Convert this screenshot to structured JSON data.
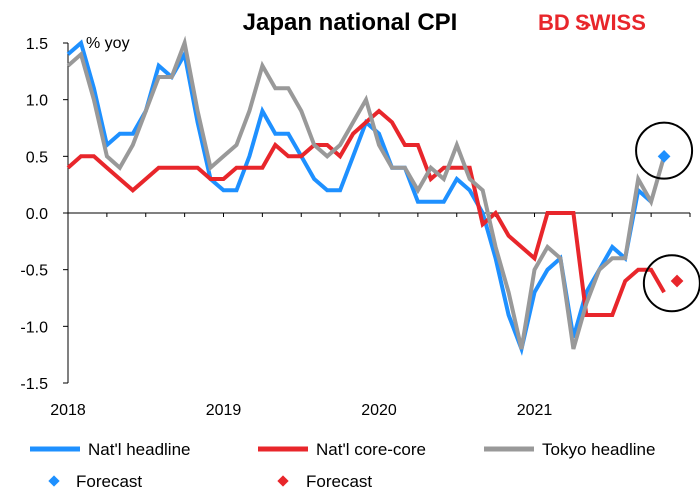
{
  "chart_data": {
    "type": "line",
    "title": "Japan national CPI",
    "unit_label": "% yoy",
    "brand": {
      "part1": "BD",
      "part2": "SWISS",
      "color": "#e8262b"
    },
    "ylim": [
      -1.5,
      1.5
    ],
    "yticks": [
      "1.5",
      "1.0",
      "0.5",
      "0.0",
      "-0.5",
      "-1.0",
      "-1.5"
    ],
    "ytick_values": [
      1.5,
      1.0,
      0.5,
      0.0,
      -0.5,
      -1.0,
      -1.5
    ],
    "xticks": [
      "2018",
      "2019",
      "2020",
      "2021"
    ],
    "xtick_months": [
      0,
      12,
      24,
      36
    ],
    "x_range_months": [
      0,
      48
    ],
    "grid": false,
    "legend_placement": "bottom",
    "series": [
      {
        "name": "Nat'l headline",
        "color": "#1e90ff",
        "values": [
          1.4,
          1.5,
          1.1,
          0.6,
          0.7,
          0.7,
          0.9,
          1.3,
          1.2,
          1.4,
          0.8,
          0.3,
          0.2,
          0.2,
          0.5,
          0.9,
          0.7,
          0.7,
          0.5,
          0.3,
          0.2,
          0.2,
          0.5,
          0.8,
          0.7,
          0.4,
          0.4,
          0.1,
          0.1,
          0.1,
          0.3,
          0.2,
          0.0,
          -0.4,
          -0.9,
          -1.2,
          -0.7,
          -0.5,
          -0.4,
          -1.1,
          -0.7,
          -0.5,
          -0.3,
          -0.4,
          0.2,
          0.1
        ]
      },
      {
        "name": "Nat'l core-core",
        "color": "#e8262b",
        "values": [
          0.4,
          0.5,
          0.5,
          0.4,
          0.3,
          0.2,
          0.3,
          0.4,
          0.4,
          0.4,
          0.4,
          0.3,
          0.3,
          0.4,
          0.4,
          0.4,
          0.6,
          0.5,
          0.5,
          0.6,
          0.6,
          0.5,
          0.7,
          0.8,
          0.9,
          0.8,
          0.6,
          0.6,
          0.3,
          0.4,
          0.4,
          0.4,
          -0.1,
          0.0,
          -0.2,
          -0.3,
          -0.4,
          0.0,
          0.0,
          0.0,
          -0.9,
          -0.9,
          -0.9,
          -0.6,
          -0.5,
          -0.5,
          -0.7
        ]
      },
      {
        "name": "Tokyo headline",
        "color": "#999999",
        "values": [
          1.3,
          1.4,
          1.0,
          0.5,
          0.4,
          0.6,
          0.9,
          1.2,
          1.2,
          1.5,
          0.9,
          0.4,
          0.5,
          0.6,
          0.9,
          1.3,
          1.1,
          1.1,
          0.9,
          0.6,
          0.5,
          0.6,
          0.8,
          1.0,
          0.6,
          0.4,
          0.4,
          0.2,
          0.4,
          0.3,
          0.6,
          0.3,
          0.2,
          -0.3,
          -0.7,
          -1.2,
          -0.5,
          -0.3,
          -0.4,
          -1.2,
          -0.8,
          -0.5,
          -0.4,
          -0.4,
          0.3,
          0.1,
          0.5
        ]
      }
    ],
    "forecasts": [
      {
        "name": "Forecast",
        "color": "#1e90ff",
        "month": 46,
        "value": 0.5
      },
      {
        "name": "Forecast",
        "color": "#e8262b",
        "month": 47,
        "value": -0.6
      }
    ],
    "annotations": [
      {
        "type": "circle",
        "month": 46,
        "value": 0.55
      },
      {
        "type": "circle",
        "month": 46.6,
        "value": -0.62
      }
    ]
  }
}
